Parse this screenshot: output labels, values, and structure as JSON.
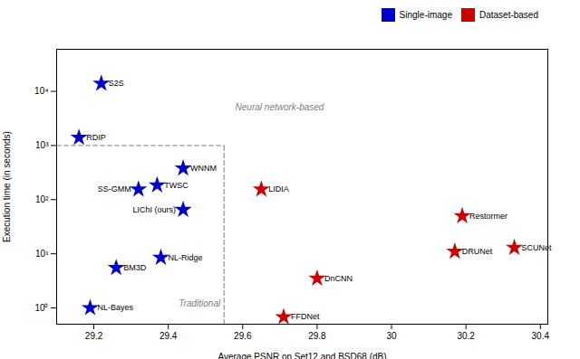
{
  "chart_data": {
    "type": "scatter",
    "xlabel": "Average PSNR on Set12 and BSD68 (dB)",
    "ylabel": "Execution time (in seconds)",
    "log": "y",
    "xlim": [
      29.1,
      30.42
    ],
    "ylim": [
      0.5,
      60000
    ],
    "xticks": [
      29.2,
      29.4,
      29.6,
      29.8,
      30,
      30.2,
      30.4
    ],
    "yticks": [
      {
        "value": 1,
        "label": "10⁰"
      },
      {
        "value": 10,
        "label": "10¹"
      },
      {
        "value": 100,
        "label": "10²"
      },
      {
        "value": 1000,
        "label": "10³"
      },
      {
        "value": 10000,
        "label": "10⁴"
      }
    ],
    "grid": false,
    "legend": "upper right",
    "series": [
      {
        "name": "Single-image",
        "color": "#0000cc",
        "marker": "star",
        "values": [
          {
            "label": "S2S",
            "x": 29.22,
            "y": 14000
          },
          {
            "label": "RDIP",
            "x": 29.16,
            "y": 1400
          },
          {
            "label": "WNNM",
            "x": 29.44,
            "y": 380
          },
          {
            "label": "SS-GMM",
            "x": 29.32,
            "y": 155
          },
          {
            "label": "TWSC",
            "x": 29.37,
            "y": 185
          },
          {
            "label": "LIChI (ours)",
            "x": 29.44,
            "y": 65
          },
          {
            "label": "NL-Ridge",
            "x": 29.38,
            "y": 8.5
          },
          {
            "label": "BM3D",
            "x": 29.26,
            "y": 5.5
          },
          {
            "label": "NL-Bayes",
            "x": 29.19,
            "y": 1.0
          }
        ]
      },
      {
        "name": "Dataset-based",
        "color": "#cc0000",
        "marker": "star",
        "values": [
          {
            "label": "LIDIA",
            "x": 29.65,
            "y": 155
          },
          {
            "label": "DnCNN",
            "x": 29.8,
            "y": 3.5
          },
          {
            "label": "FFDNet",
            "x": 29.71,
            "y": 0.68
          },
          {
            "label": "DRUNet",
            "x": 30.17,
            "y": 11
          },
          {
            "label": "Restormer",
            "x": 30.19,
            "y": 50
          },
          {
            "label": "SCUNet",
            "x": 30.33,
            "y": 13
          }
        ]
      }
    ],
    "annotations": [
      {
        "text": "Traditional",
        "x": 29.54,
        "y": 1.2,
        "color": "gray"
      },
      {
        "text": "Neural network-based",
        "x": 29.58,
        "y": 5000,
        "color": "gray"
      }
    ],
    "lines": [
      {
        "x": [
          29.1,
          29.55
        ],
        "y": [
          1000,
          1000
        ],
        "color": "gray",
        "line_style": "dashed"
      },
      {
        "x": [
          29.55,
          29.55
        ],
        "y": [
          0.5,
          1000
        ],
        "color": "gray",
        "line_style": "dashed"
      }
    ]
  }
}
